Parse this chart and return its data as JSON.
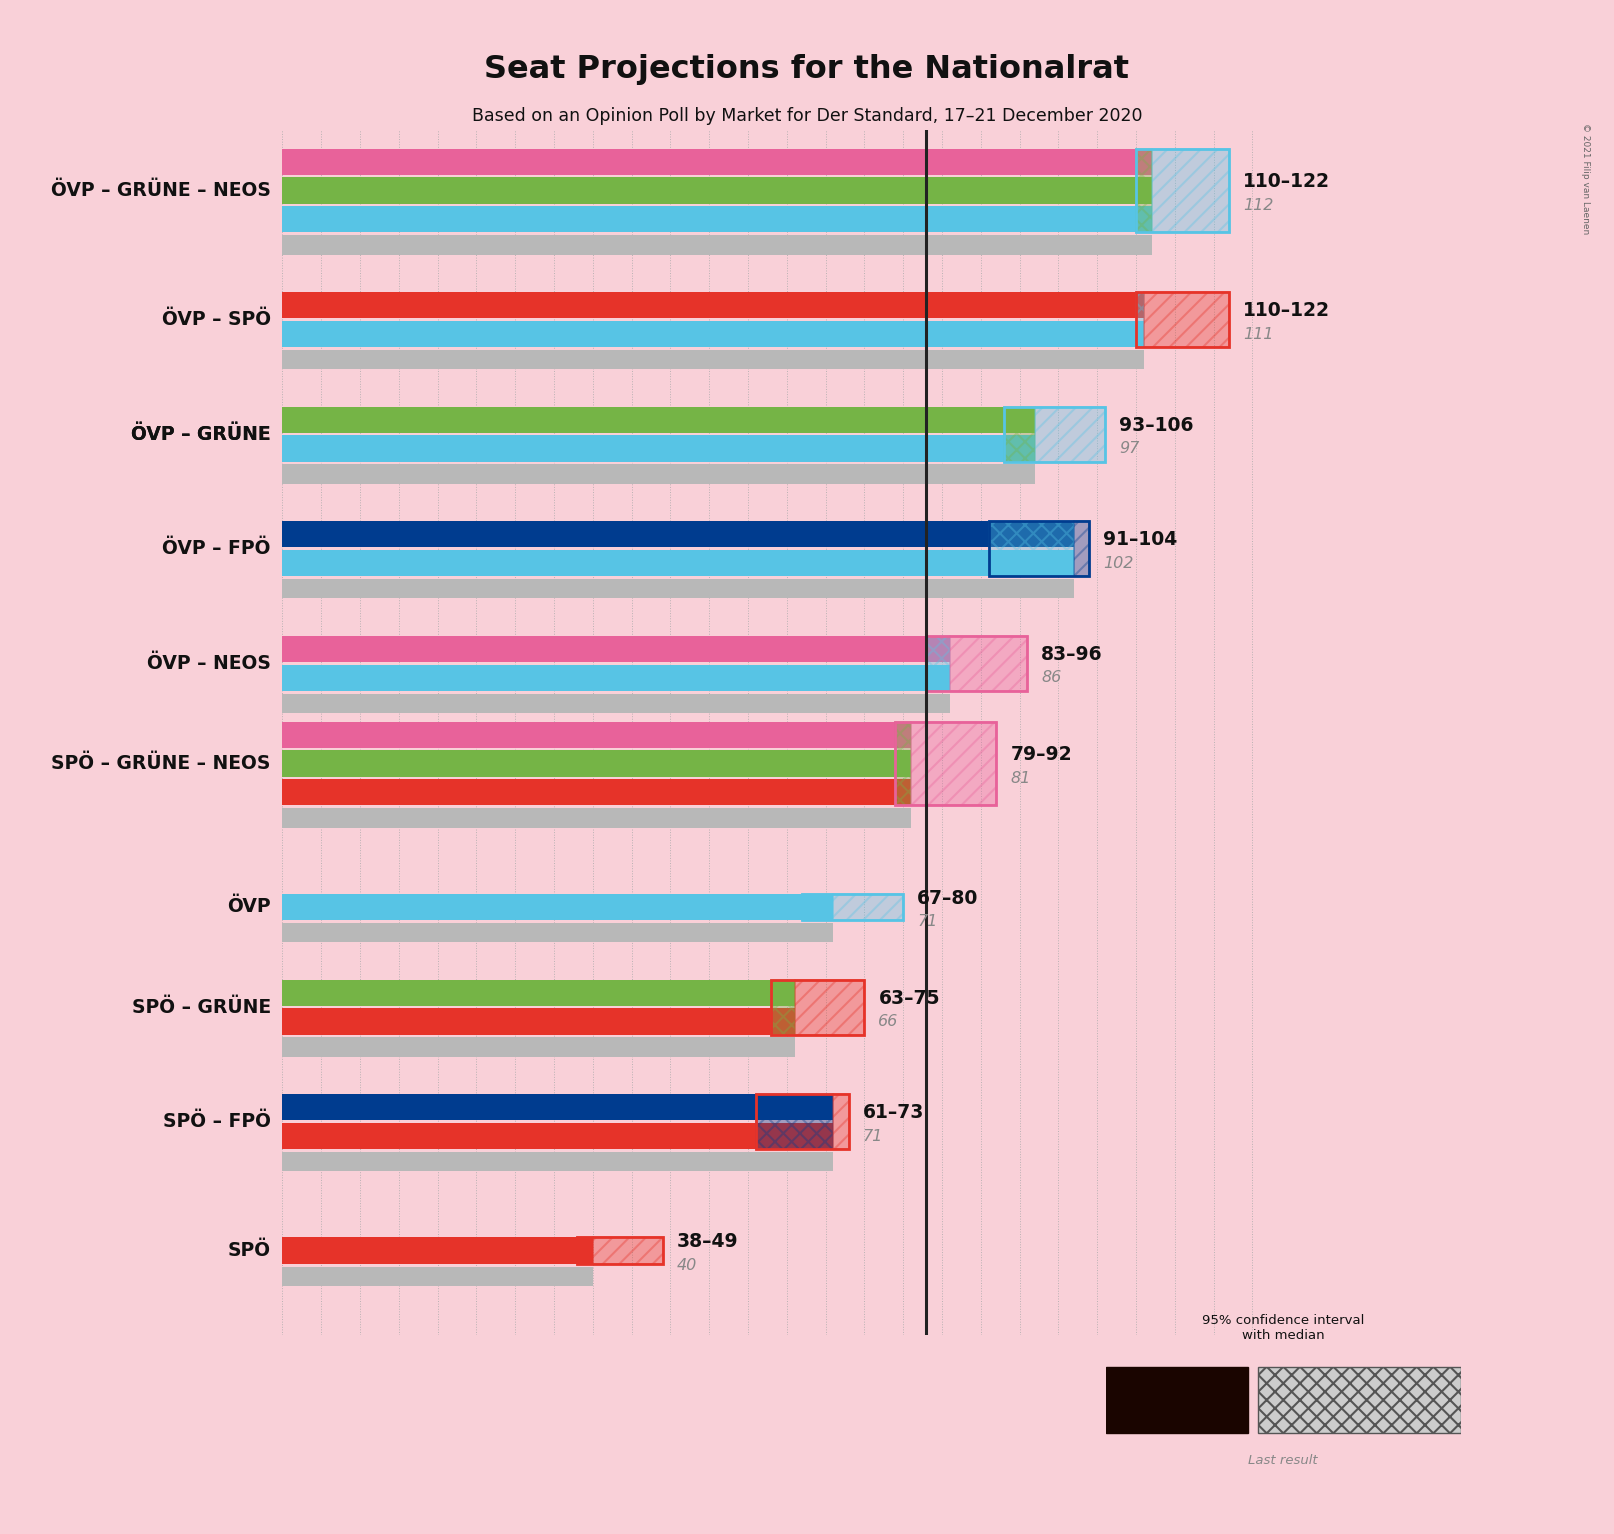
{
  "title": "Seat Projections for the Nationalrat",
  "subtitle": "Based on an Opinion Poll by Market for Der Standard, 17–21 December 2020",
  "copyright": "© 2021 Filip van Laenen",
  "background_color": "#f9d0d8",
  "majority_line": 83,
  "xlim": [
    0,
    130
  ],
  "coalition_definitions": [
    {
      "name": "ÖVP – GRÜNE – NEOS",
      "underline": false,
      "parties": [
        [
          "#57C4E5",
          1
        ],
        [
          "#75B446",
          1
        ],
        [
          "#E8629A",
          1
        ]
      ],
      "low": 110,
      "high": 122,
      "median": 112,
      "last": 112,
      "ci_color1": "#75B446",
      "ci_color2": "#57C4E5"
    },
    {
      "name": "ÖVP – SPÖ",
      "underline": false,
      "parties": [
        [
          "#57C4E5",
          1
        ],
        [
          "#E63329",
          1
        ]
      ],
      "low": 110,
      "high": 122,
      "median": 111,
      "last": 111,
      "ci_color1": "#57C4E5",
      "ci_color2": "#E63329"
    },
    {
      "name": "ÖVP – GRÜNE",
      "underline": true,
      "parties": [
        [
          "#57C4E5",
          1
        ],
        [
          "#75B446",
          1
        ]
      ],
      "low": 93,
      "high": 106,
      "median": 97,
      "last": 97,
      "ci_color1": "#75B446",
      "ci_color2": "#57C4E5"
    },
    {
      "name": "ÖVP – FPÖ",
      "underline": false,
      "parties": [
        [
          "#57C4E5",
          1
        ],
        [
          "#003C8F",
          1
        ]
      ],
      "low": 91,
      "high": 104,
      "median": 102,
      "last": 102,
      "ci_color1": "#57C4E5",
      "ci_color2": "#003C8F"
    },
    {
      "name": "ÖVP – NEOS",
      "underline": false,
      "parties": [
        [
          "#57C4E5",
          1
        ],
        [
          "#E8629A",
          1
        ]
      ],
      "low": 83,
      "high": 96,
      "median": 86,
      "last": 86,
      "ci_color1": "#57C4E5",
      "ci_color2": "#E8629A"
    },
    {
      "name": "SPÖ – GRÜNE – NEOS",
      "underline": false,
      "parties": [
        [
          "#E63329",
          1
        ],
        [
          "#75B446",
          1
        ],
        [
          "#E8629A",
          1
        ]
      ],
      "low": 79,
      "high": 92,
      "median": 81,
      "last": 81,
      "ci_color1": "#75B446",
      "ci_color2": "#E8629A"
    },
    {
      "name": "ÖVP",
      "underline": false,
      "parties": [
        [
          "#57C4E5",
          1
        ]
      ],
      "low": 67,
      "high": 80,
      "median": 71,
      "last": 71,
      "ci_color1": "#57C4E5",
      "ci_color2": "#57C4E5"
    },
    {
      "name": "SPÖ – GRÜNE",
      "underline": false,
      "parties": [
        [
          "#E63329",
          1
        ],
        [
          "#75B446",
          1
        ]
      ],
      "low": 63,
      "high": 75,
      "median": 66,
      "last": 66,
      "ci_color1": "#75B446",
      "ci_color2": "#E63329"
    },
    {
      "name": "SPÖ – FPÖ",
      "underline": false,
      "parties": [
        [
          "#E63329",
          1
        ],
        [
          "#003C8F",
          1
        ]
      ],
      "low": 61,
      "high": 73,
      "median": 71,
      "last": 71,
      "ci_color1": "#003C8F",
      "ci_color2": "#E63329"
    },
    {
      "name": "SPÖ",
      "underline": false,
      "parties": [
        [
          "#E63329",
          1
        ]
      ],
      "low": 38,
      "high": 49,
      "median": 40,
      "last": 40,
      "ci_color1": "#E63329",
      "ci_color2": "#E63329"
    }
  ]
}
